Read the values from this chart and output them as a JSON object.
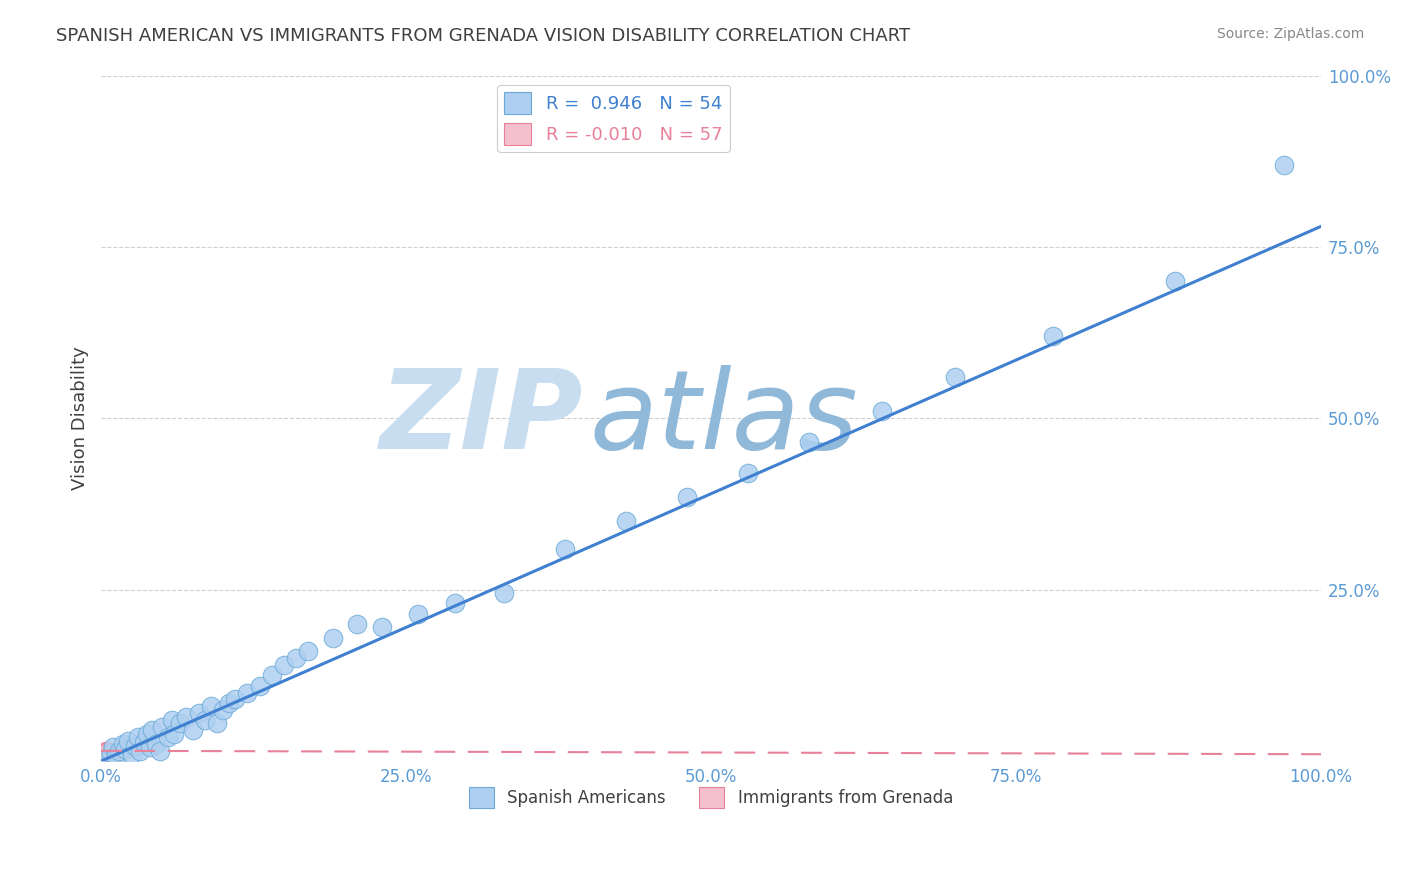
{
  "title": "SPANISH AMERICAN VS IMMIGRANTS FROM GRENADA VISION DISABILITY CORRELATION CHART",
  "source": "Source: ZipAtlas.com",
  "ylabel": "Vision Disability",
  "xlim": [
    0,
    1
  ],
  "ylim": [
    0,
    1
  ],
  "xticks": [
    0.0,
    0.25,
    0.5,
    0.75,
    1.0
  ],
  "yticks": [
    0.0,
    0.25,
    0.5,
    0.75,
    1.0
  ],
  "xticklabels": [
    "0.0%",
    "25.0%",
    "50.0%",
    "75.0%",
    "100.0%"
  ],
  "yticklabels": [
    "",
    "25.0%",
    "50.0%",
    "75.0%",
    "100.0%"
  ],
  "blue_color": "#aecff0",
  "blue_edge_color": "#6baad8",
  "pink_color": "#f5c0ce",
  "pink_edge_color": "#e8809a",
  "trend_blue_color": "#4080d0",
  "trend_pink_color": "#e8809a",
  "R_blue": 0.946,
  "N_blue": 54,
  "R_pink": -0.01,
  "N_pink": 57,
  "legend_label_blue": "Spanish Americans",
  "legend_label_pink": "Immigrants from Grenada",
  "blue_trend_x0": 0.0,
  "blue_trend_y0": 0.0,
  "blue_trend_x1": 1.0,
  "blue_trend_y1": 0.78,
  "pink_trend_x0": 0.0,
  "pink_trend_y0": 0.015,
  "pink_trend_x1": 1.0,
  "pink_trend_y1": 0.01,
  "blue_scatter_x": [
    0.005,
    0.008,
    0.01,
    0.012,
    0.015,
    0.018,
    0.02,
    0.022,
    0.025,
    0.028,
    0.03,
    0.032,
    0.035,
    0.038,
    0.04,
    0.042,
    0.045,
    0.048,
    0.05,
    0.055,
    0.058,
    0.06,
    0.065,
    0.07,
    0.075,
    0.08,
    0.085,
    0.09,
    0.095,
    0.1,
    0.105,
    0.11,
    0.12,
    0.13,
    0.14,
    0.15,
    0.16,
    0.17,
    0.19,
    0.21,
    0.23,
    0.26,
    0.29,
    0.33,
    0.38,
    0.43,
    0.48,
    0.53,
    0.58,
    0.64,
    0.7,
    0.78,
    0.88,
    0.97
  ],
  "blue_scatter_y": [
    0.005,
    0.012,
    0.02,
    0.008,
    0.015,
    0.025,
    0.018,
    0.03,
    0.01,
    0.022,
    0.035,
    0.015,
    0.028,
    0.04,
    0.02,
    0.045,
    0.025,
    0.015,
    0.05,
    0.035,
    0.06,
    0.04,
    0.055,
    0.065,
    0.045,
    0.07,
    0.06,
    0.08,
    0.055,
    0.075,
    0.085,
    0.09,
    0.1,
    0.11,
    0.125,
    0.14,
    0.15,
    0.16,
    0.18,
    0.2,
    0.195,
    0.215,
    0.23,
    0.245,
    0.31,
    0.35,
    0.385,
    0.42,
    0.465,
    0.51,
    0.56,
    0.62,
    0.7,
    0.87
  ],
  "pink_scatter_x": [
    0.0,
    0.002,
    0.004,
    0.006,
    0.008,
    0.01,
    0.001,
    0.003,
    0.005,
    0.007,
    0.009,
    0.002,
    0.004,
    0.006,
    0.001,
    0.003,
    0.005,
    0.007,
    0.002,
    0.004,
    0.006,
    0.001,
    0.003,
    0.008,
    0.002,
    0.005,
    0.003,
    0.007,
    0.001,
    0.004,
    0.006,
    0.002,
    0.005,
    0.003,
    0.008,
    0.001,
    0.004,
    0.006,
    0.002,
    0.005,
    0.003,
    0.007,
    0.001,
    0.004,
    0.006,
    0.002,
    0.005,
    0.003,
    0.008,
    0.001,
    0.004,
    0.006,
    0.002,
    0.005,
    0.003,
    0.007,
    0.001
  ],
  "pink_scatter_y": [
    0.005,
    0.01,
    0.003,
    0.015,
    0.008,
    0.002,
    0.012,
    0.007,
    0.018,
    0.004,
    0.009,
    0.014,
    0.006,
    0.001,
    0.011,
    0.016,
    0.003,
    0.008,
    0.013,
    0.005,
    0.01,
    0.015,
    0.002,
    0.007,
    0.012,
    0.004,
    0.009,
    0.014,
    0.006,
    0.011,
    0.001,
    0.016,
    0.003,
    0.008,
    0.013,
    0.005,
    0.01,
    0.002,
    0.015,
    0.007,
    0.012,
    0.004,
    0.009,
    0.014,
    0.006,
    0.011,
    0.001,
    0.016,
    0.003,
    0.008,
    0.013,
    0.005,
    0.01,
    0.002,
    0.015,
    0.007,
    0.012
  ],
  "watermark_zip": "ZIP",
  "watermark_atlas": "atlas",
  "watermark_color_zip": "#c8ddf0",
  "watermark_color_atlas": "#90b8d8",
  "bg_color": "#ffffff",
  "grid_color": "#bbbbbb",
  "tick_label_color": "#5b9bd5",
  "title_color": "#404040",
  "source_color": "#888888",
  "figsize": [
    14.06,
    8.92
  ],
  "dpi": 100
}
